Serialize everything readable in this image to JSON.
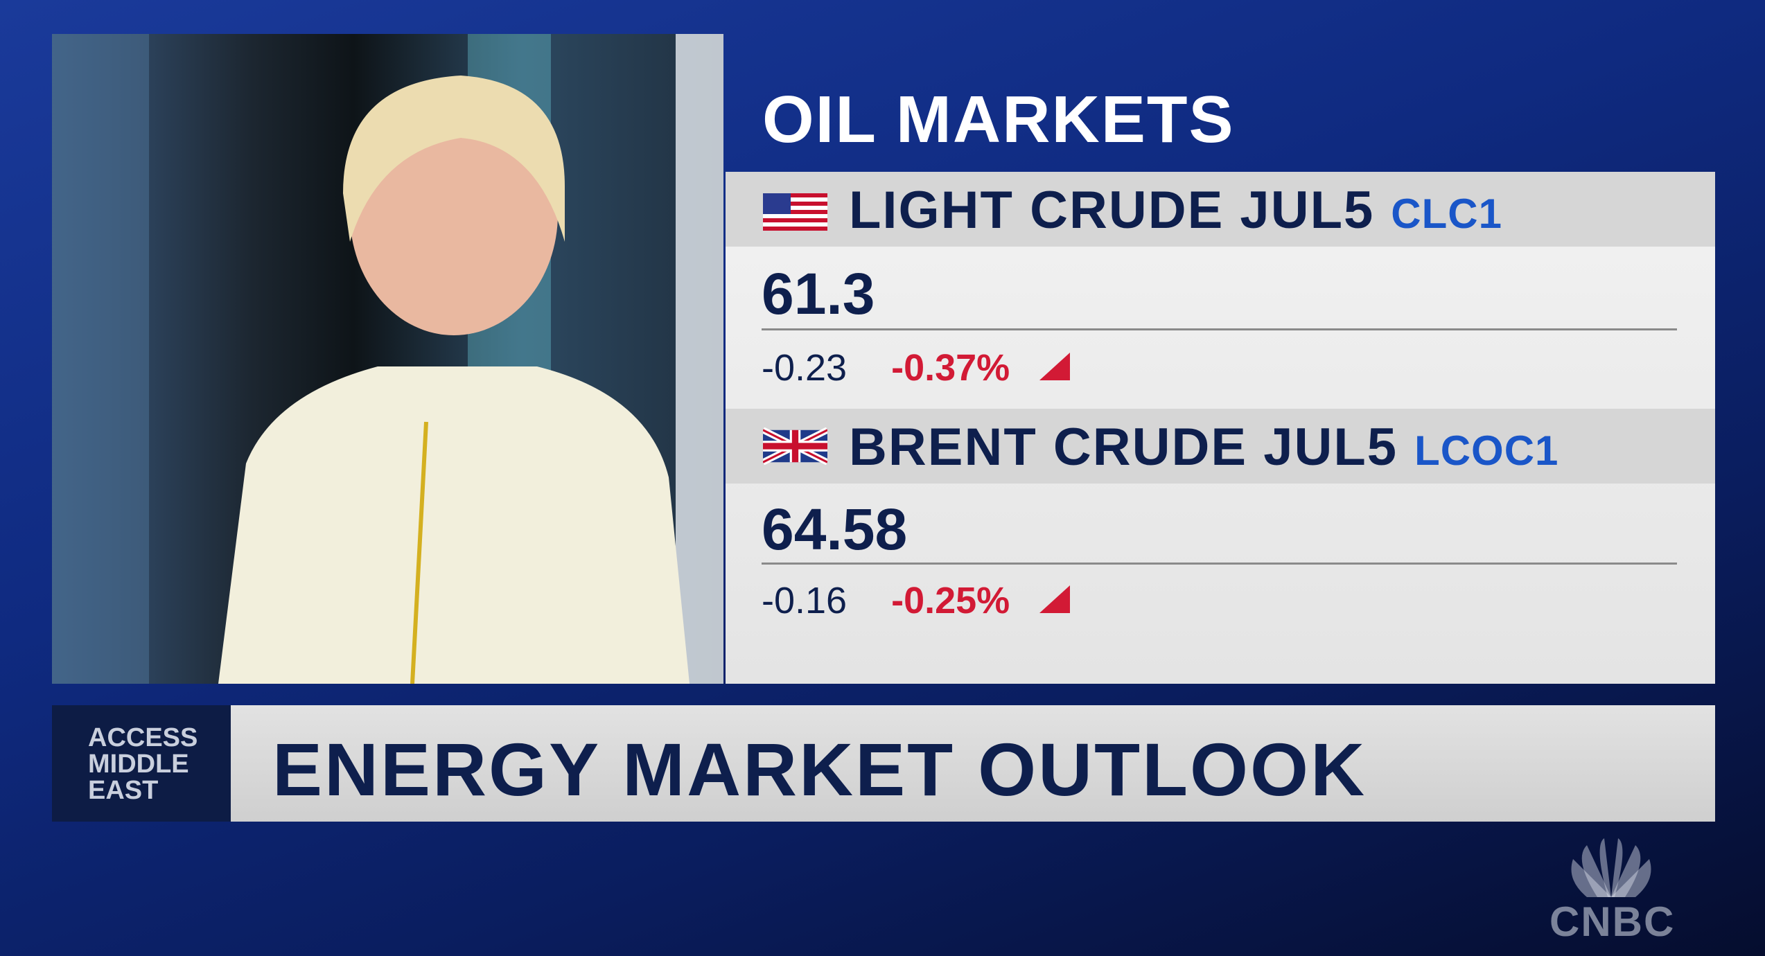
{
  "header": {
    "title": "OIL MARKETS"
  },
  "quotes": [
    {
      "name": "LIGHT CRUDE JUL5",
      "ticker": "CLC1",
      "price": "61.3",
      "change": "-0.23",
      "percent": "-0.37%"
    },
    {
      "name": "BRENT CRUDE JUL5",
      "ticker": "LCOC1",
      "price": "64.58",
      "change": "-0.16",
      "percent": "-0.25%"
    }
  ],
  "banner": {
    "show": [
      "ACCESS",
      "MIDDLE",
      "EAST"
    ],
    "headline": "ENERGY MARKET OUTLOOK"
  },
  "logo": "CNBC"
}
